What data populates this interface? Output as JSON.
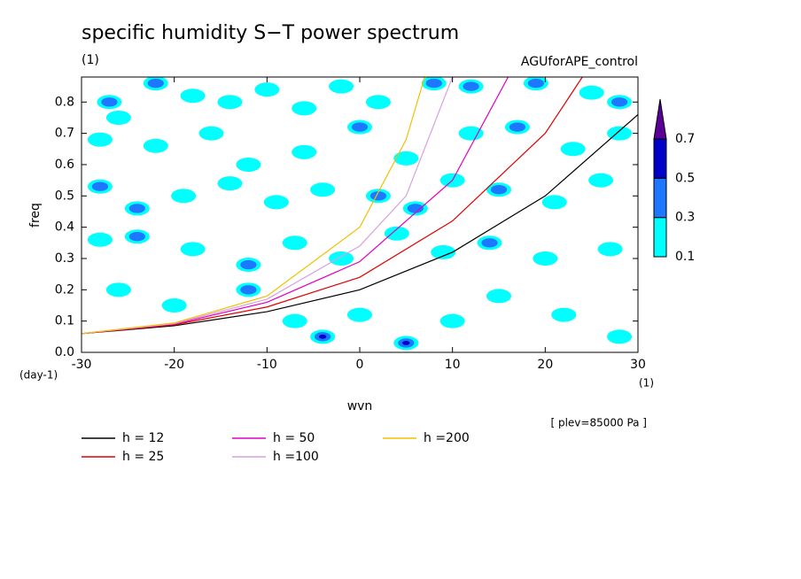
{
  "chart_data": {
    "type": "contour",
    "title": "specific humidity S−T power spectrum",
    "subtitle": "(1)",
    "experiment": "AGUforAPE_control",
    "xlabel": "wvn",
    "ylabel": "freq",
    "x_unit": "(1)",
    "y_unit": "(day-1)",
    "level_note": "[ plev=85000 Pa ]",
    "xlim": [
      -30,
      30
    ],
    "ylim": [
      0,
      0.88
    ],
    "xticks": [
      -30,
      -20,
      -10,
      0,
      10,
      20,
      30
    ],
    "yticks": [
      {
        "value": 0,
        "label": "0.0"
      },
      0.1,
      0.2,
      0.3,
      0.4,
      0.5,
      0.6,
      0.7,
      0.8
    ],
    "contour_levels": [
      0.1,
      0.3,
      0.5,
      0.7
    ],
    "contour_colors": [
      "#00ffff",
      "#1e78ff",
      "#0000c8",
      "#5a0096"
    ],
    "cells": {
      "x": [
        -27,
        -26,
        -22,
        -18,
        -14,
        -10,
        -6,
        -2,
        2,
        8,
        12,
        19,
        25,
        28,
        -28,
        -22,
        -16,
        -12,
        -6,
        0,
        5,
        12,
        17,
        23,
        28,
        -28,
        -24,
        -19,
        -14,
        -9,
        -4,
        2,
        6,
        10,
        15,
        21,
        26,
        -28,
        -24,
        -18,
        -12,
        -7,
        -2,
        4,
        9,
        14,
        20,
        27,
        -26,
        -20,
        -12,
        -7,
        -4,
        0,
        5,
        10,
        15,
        22,
        28
      ],
      "y": [
        0.8,
        0.75,
        0.86,
        0.82,
        0.8,
        0.84,
        0.78,
        0.85,
        0.8,
        0.86,
        0.85,
        0.86,
        0.83,
        0.8,
        0.68,
        0.66,
        0.7,
        0.6,
        0.64,
        0.72,
        0.62,
        0.7,
        0.72,
        0.65,
        0.7,
        0.53,
        0.46,
        0.5,
        0.54,
        0.48,
        0.52,
        0.5,
        0.46,
        0.55,
        0.52,
        0.48,
        0.55,
        0.36,
        0.37,
        0.33,
        0.28,
        0.35,
        0.3,
        0.38,
        0.32,
        0.35,
        0.3,
        0.33,
        0.2,
        0.15,
        0.2,
        0.1,
        0.05,
        0.12,
        0.03,
        0.1,
        0.18,
        0.12,
        0.05
      ],
      "values": [
        0.3,
        0.1,
        0.3,
        0.1,
        0.1,
        0.1,
        0.1,
        0.1,
        0.1,
        0.3,
        0.3,
        0.3,
        0.1,
        0.3,
        0.1,
        0.1,
        0.1,
        0.1,
        0.1,
        0.3,
        0.1,
        0.1,
        0.3,
        0.1,
        0.1,
        0.3,
        0.3,
        0.1,
        0.1,
        0.1,
        0.1,
        0.3,
        0.3,
        0.1,
        0.3,
        0.1,
        0.1,
        0.1,
        0.3,
        0.1,
        0.3,
        0.1,
        0.1,
        0.1,
        0.1,
        0.3,
        0.1,
        0.1,
        0.1,
        0.1,
        0.3,
        0.1,
        0.5,
        0.1,
        0.5,
        0.1,
        0.1,
        0.1,
        0.1
      ]
    },
    "series": [
      {
        "name": "h = 12",
        "color": "#000000",
        "x": [
          -30,
          -20,
          -10,
          0,
          10,
          20,
          30
        ],
        "values": [
          0.06,
          0.085,
          0.13,
          0.2,
          0.32,
          0.5,
          0.76
        ]
      },
      {
        "name": "h = 25",
        "color": "#e00000",
        "x": [
          -30,
          -20,
          -10,
          0,
          10,
          20,
          24
        ],
        "values": [
          0.06,
          0.088,
          0.145,
          0.24,
          0.42,
          0.7,
          0.88
        ]
      },
      {
        "name": "h = 50",
        "color": "#e000c0",
        "x": [
          -30,
          -20,
          -10,
          0,
          10,
          16
        ],
        "values": [
          0.06,
          0.09,
          0.16,
          0.29,
          0.55,
          0.88
        ]
      },
      {
        "name": "h =100",
        "color": "#d8a0e0",
        "x": [
          -30,
          -20,
          -10,
          0,
          5,
          10
        ],
        "values": [
          0.06,
          0.092,
          0.17,
          0.34,
          0.5,
          0.88
        ]
      },
      {
        "name": "h =200",
        "color": "#f0c000",
        "x": [
          -30,
          -20,
          -10,
          0,
          5,
          7
        ],
        "values": [
          0.06,
          0.094,
          0.18,
          0.4,
          0.68,
          0.88
        ]
      }
    ]
  }
}
